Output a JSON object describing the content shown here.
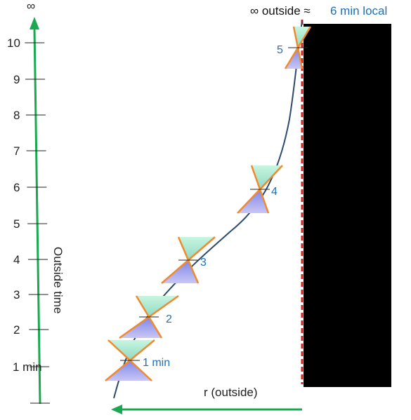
{
  "header": {
    "prefix": "∞ outside ≈",
    "highlight": "6 min local"
  },
  "axis": {
    "top_symbol": "∞",
    "ticks": [
      "1 min",
      "2",
      "3",
      "4",
      "5",
      "6",
      "7",
      "8",
      "9",
      "10"
    ],
    "label": "Outside time"
  },
  "r_axis": {
    "label": "r (outside)"
  },
  "cone_labels": [
    "1 min",
    "2",
    "3",
    "4",
    "5"
  ],
  "colors": {
    "axis_green": "#1aa850",
    "worldline": "#2c4a6b",
    "cone_edge": "#f08a2c",
    "horizon_red": "#cc2222",
    "black_hole": "#000000",
    "label_blue": "#1f6fb5"
  }
}
